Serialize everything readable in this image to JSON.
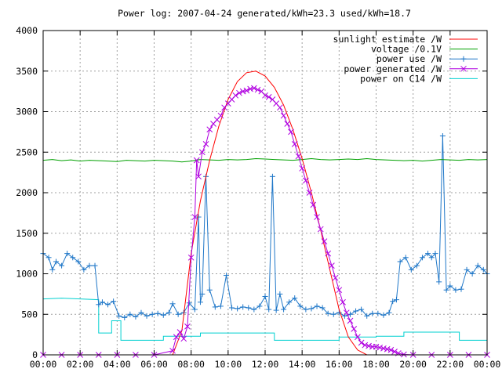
{
  "chart_data": {
    "type": "line",
    "title": "Power log: 2007-04-24 generated/kWh=23.3 used/kWh=18.7",
    "xlabel": "",
    "ylabel": "",
    "xlim": [
      0,
      24
    ],
    "ylim": [
      0,
      4000
    ],
    "grid": true,
    "legend_position": "top-right",
    "x_ticks": [
      0,
      2,
      4,
      6,
      8,
      10,
      12,
      14,
      16,
      18,
      20,
      22,
      24
    ],
    "x_tick_labels": [
      "00:00",
      "02:00",
      "04:00",
      "06:00",
      "08:00",
      "10:00",
      "12:00",
      "14:00",
      "16:00",
      "18:00",
      "20:00",
      "22:00",
      "00:00"
    ],
    "y_ticks": [
      0,
      500,
      1000,
      1500,
      2000,
      2500,
      3000,
      3500,
      4000
    ],
    "y_tick_labels": [
      "0",
      "500",
      "1000",
      "1500",
      "2000",
      "2500",
      "3000",
      "3500",
      "4000"
    ],
    "series": [
      {
        "name": "sunlight estimate /W",
        "color": "#ff0000",
        "marker": "none",
        "x": [
          0,
          7.0,
          7.5,
          8,
          8.5,
          9,
          9.5,
          10,
          10.5,
          11,
          11.5,
          12,
          12.5,
          13,
          13.5,
          14,
          14.5,
          15,
          15.5,
          16,
          16.5,
          17,
          17.5,
          18.0,
          24
        ],
        "y": [
          0,
          0,
          300,
          1250,
          1900,
          2400,
          2820,
          3150,
          3370,
          3480,
          3500,
          3440,
          3300,
          3080,
          2780,
          2420,
          2000,
          1540,
          1050,
          560,
          220,
          60,
          0,
          0,
          0
        ]
      },
      {
        "name": "voltage /0.1V",
        "color": "#00a000",
        "marker": "none",
        "x": [
          0,
          0.5,
          1,
          1.5,
          2,
          2.5,
          3,
          3.5,
          4,
          4.5,
          5,
          5.5,
          6,
          6.5,
          7,
          7.5,
          8,
          8.5,
          9,
          9.5,
          10,
          10.5,
          11,
          11.5,
          12,
          12.5,
          13,
          13.5,
          14,
          14.5,
          15,
          15.5,
          16,
          16.5,
          17,
          17.5,
          18,
          18.5,
          19,
          19.5,
          20,
          20.5,
          21,
          21.5,
          22,
          22.5,
          23,
          23.5,
          24
        ],
        "y": [
          2400,
          2410,
          2395,
          2405,
          2390,
          2400,
          2395,
          2390,
          2385,
          2400,
          2395,
          2390,
          2400,
          2395,
          2390,
          2380,
          2390,
          2410,
          2405,
          2400,
          2410,
          2405,
          2410,
          2420,
          2415,
          2410,
          2405,
          2400,
          2410,
          2420,
          2410,
          2405,
          2410,
          2415,
          2410,
          2420,
          2410,
          2405,
          2400,
          2395,
          2400,
          2390,
          2400,
          2410,
          2405,
          2400,
          2410,
          2405,
          2410
        ]
      },
      {
        "name": "power use /W",
        "color": "#1f77c8",
        "marker": "+",
        "x": [
          0,
          0.3,
          0.5,
          0.7,
          1.0,
          1.3,
          1.6,
          1.9,
          2.2,
          2.5,
          2.8,
          3.0,
          3.2,
          3.5,
          3.8,
          4.1,
          4.4,
          4.7,
          5.0,
          5.3,
          5.6,
          5.9,
          6.2,
          6.5,
          6.8,
          7.0,
          7.3,
          7.6,
          7.9,
          8.2,
          8.4,
          8.5,
          8.6,
          8.8,
          9.0,
          9.3,
          9.6,
          9.9,
          10.2,
          10.5,
          10.8,
          11.1,
          11.4,
          11.7,
          12.0,
          12.2,
          12.4,
          12.6,
          12.8,
          13.0,
          13.3,
          13.6,
          13.9,
          14.2,
          14.5,
          14.8,
          15.1,
          15.4,
          15.7,
          16.0,
          16.3,
          16.6,
          16.9,
          17.2,
          17.5,
          17.8,
          18.1,
          18.4,
          18.7,
          18.9,
          19.1,
          19.3,
          19.6,
          19.9,
          20.2,
          20.5,
          20.8,
          21.0,
          21.2,
          21.4,
          21.6,
          21.8,
          22.0,
          22.3,
          22.6,
          22.9,
          23.2,
          23.5,
          23.8,
          24
        ],
        "y": [
          1250,
          1200,
          1050,
          1150,
          1100,
          1250,
          1200,
          1150,
          1050,
          1100,
          1100,
          620,
          650,
          620,
          660,
          480,
          460,
          500,
          470,
          520,
          480,
          500,
          510,
          490,
          520,
          630,
          500,
          520,
          640,
          560,
          1700,
          650,
          750,
          2200,
          800,
          590,
          600,
          980,
          580,
          570,
          590,
          580,
          560,
          600,
          720,
          560,
          2200,
          550,
          750,
          560,
          650,
          700,
          600,
          560,
          570,
          600,
          580,
          510,
          500,
          520,
          480,
          500,
          540,
          560,
          480,
          510,
          510,
          490,
          520,
          660,
          680,
          1150,
          1200,
          1050,
          1100,
          1200,
          1250,
          1200,
          1250,
          900,
          2700,
          800,
          850,
          800,
          810,
          1050,
          1000,
          1100,
          1050,
          1000
        ]
      },
      {
        "name": "power generated /W",
        "color": "#b000e0",
        "marker": "x",
        "x": [
          0,
          1,
          2,
          3,
          4,
          5,
          6,
          7.0,
          7.2,
          7.4,
          7.6,
          7.8,
          8.0,
          8.2,
          8.3,
          8.4,
          8.6,
          8.8,
          9.0,
          9.2,
          9.4,
          9.6,
          9.8,
          10.0,
          10.2,
          10.4,
          10.6,
          10.8,
          11.0,
          11.2,
          11.4,
          11.6,
          11.8,
          12.0,
          12.2,
          12.4,
          12.6,
          12.8,
          13.0,
          13.2,
          13.4,
          13.6,
          13.8,
          14.0,
          14.2,
          14.4,
          14.6,
          14.8,
          15.0,
          15.2,
          15.4,
          15.6,
          15.8,
          16.0,
          16.2,
          16.4,
          16.6,
          16.8,
          17.0,
          17.2,
          17.4,
          17.6,
          17.8,
          18.0,
          18.2,
          18.4,
          18.6,
          18.8,
          19.0,
          19.2,
          19.5,
          20,
          21,
          22,
          23,
          24
        ],
        "y": [
          0,
          0,
          0,
          0,
          0,
          0,
          0,
          50,
          220,
          280,
          200,
          350,
          1200,
          1700,
          2400,
          2200,
          2500,
          2600,
          2780,
          2850,
          2900,
          2950,
          3050,
          3100,
          3150,
          3200,
          3230,
          3250,
          3260,
          3280,
          3290,
          3270,
          3250,
          3200,
          3180,
          3150,
          3100,
          3050,
          2950,
          2850,
          2750,
          2600,
          2450,
          2300,
          2150,
          2000,
          1850,
          1700,
          1550,
          1400,
          1250,
          1100,
          950,
          800,
          650,
          520,
          420,
          320,
          220,
          150,
          120,
          110,
          100,
          100,
          90,
          80,
          70,
          60,
          40,
          20,
          5,
          0,
          0,
          0,
          0,
          0
        ]
      },
      {
        "name": "power on C14 /W",
        "color": "#00d0d0",
        "marker": "none",
        "x": [
          0,
          1.0,
          2.0,
          3.0,
          3.0,
          3.7,
          3.7,
          4.2,
          4.2,
          6.5,
          6.5,
          8.0,
          8.0,
          8.5,
          8.5,
          12.5,
          12.5,
          16.0,
          16.0,
          18.0,
          18.0,
          19.5,
          19.5,
          22.5,
          22.5,
          24
        ],
        "y": [
          690,
          700,
          690,
          680,
          270,
          270,
          420,
          420,
          180,
          180,
          230,
          230,
          230,
          230,
          270,
          270,
          180,
          180,
          220,
          220,
          230,
          230,
          280,
          280,
          180,
          180
        ]
      }
    ]
  }
}
